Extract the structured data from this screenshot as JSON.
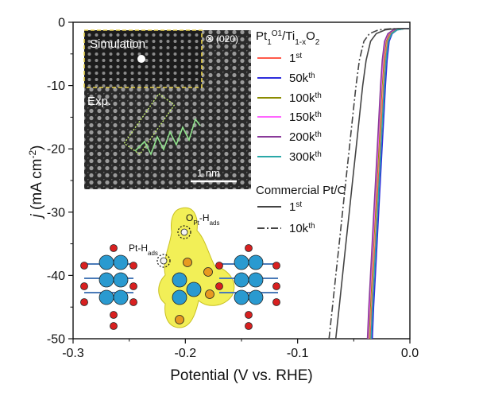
{
  "chart_data": {
    "type": "line",
    "xlabel": "Potential (V vs. RHE)",
    "ylabel_parts": {
      "italic": "j",
      "rest": " (mA cm",
      "sup": "-2",
      "close": ")"
    },
    "xlim": [
      -0.3,
      0.0
    ],
    "ylim": [
      -50,
      0
    ],
    "x_ticks": [
      "-0.3",
      "-0.2",
      "-0.1",
      "0.0"
    ],
    "y_ticks": [
      "0",
      "-10",
      "-20",
      "-30",
      "-40",
      "-50"
    ],
    "groups": [
      {
        "label_parts": [
          "Pt",
          "1",
          "O1",
          "/Ti",
          "1-x",
          "O",
          "2"
        ]
      },
      {
        "label": "Commercial Pt/C"
      }
    ],
    "series": [
      {
        "name_base": "1",
        "name_sup": "st",
        "group": 0,
        "color": "#ff5a4a",
        "style": "solid",
        "x": [
          -0.0352,
          -0.034,
          -0.0325,
          -0.031,
          -0.0295,
          -0.028,
          -0.0265,
          -0.025,
          -0.0235,
          -0.022,
          -0.02,
          -0.017,
          -0.012,
          -0.005,
          0.0
        ],
        "y": [
          -50,
          -45,
          -40,
          -35,
          -30,
          -25,
          -20,
          -15,
          -10,
          -6,
          -3,
          -1.8,
          -1.2,
          -1.0,
          -1.0
        ]
      },
      {
        "name_base": "50k",
        "name_sup": "th",
        "group": 0,
        "color": "#2d2ddc",
        "style": "solid",
        "x": [
          -0.0335,
          -0.0323,
          -0.0308,
          -0.0293,
          -0.0278,
          -0.0263,
          -0.0248,
          -0.0233,
          -0.0218,
          -0.0203,
          -0.0185,
          -0.0158,
          -0.0113,
          -0.0045,
          0.0
        ],
        "y": [
          -50,
          -45,
          -40,
          -35,
          -30,
          -25,
          -20,
          -15,
          -10,
          -6,
          -3,
          -1.8,
          -1.2,
          -1.0,
          -1.0
        ]
      },
      {
        "name_base": "100k",
        "name_sup": "th",
        "group": 0,
        "color": "#8c8c00",
        "style": "solid",
        "x": [
          -0.0365,
          -0.0353,
          -0.0338,
          -0.0323,
          -0.0308,
          -0.0293,
          -0.0278,
          -0.0263,
          -0.0248,
          -0.0233,
          -0.0213,
          -0.0183,
          -0.0133,
          -0.0063,
          0.0
        ],
        "y": [
          -50,
          -45,
          -40,
          -35,
          -30,
          -25,
          -20,
          -15,
          -10,
          -6,
          -3,
          -1.8,
          -1.2,
          -1.0,
          -1.0
        ]
      },
      {
        "name_base": "150k",
        "name_sup": "th",
        "group": 0,
        "color": "#ff66ff",
        "style": "solid",
        "x": [
          -0.0372,
          -0.036,
          -0.0345,
          -0.033,
          -0.0315,
          -0.03,
          -0.0285,
          -0.027,
          -0.0255,
          -0.024,
          -0.022,
          -0.019,
          -0.014,
          -0.007,
          0.0
        ],
        "y": [
          -50,
          -45,
          -40,
          -35,
          -30,
          -25,
          -20,
          -15,
          -10,
          -6,
          -3,
          -1.8,
          -1.2,
          -1.0,
          -1.0
        ]
      },
      {
        "name_base": "200k",
        "name_sup": "th",
        "group": 0,
        "color": "#8a3a9a",
        "style": "solid",
        "x": [
          -0.0378,
          -0.0366,
          -0.0351,
          -0.0336,
          -0.0321,
          -0.0306,
          -0.0291,
          -0.0276,
          -0.0261,
          -0.0246,
          -0.0226,
          -0.0196,
          -0.0146,
          -0.0076,
          0.0
        ],
        "y": [
          -50,
          -45,
          -40,
          -35,
          -30,
          -25,
          -20,
          -15,
          -10,
          -6,
          -3,
          -1.8,
          -1.2,
          -1.0,
          -1.0
        ]
      },
      {
        "name_base": "300k",
        "name_sup": "th",
        "group": 0,
        "color": "#2aa8a8",
        "style": "solid",
        "x": [
          -0.0345,
          -0.0333,
          -0.0318,
          -0.0303,
          -0.0288,
          -0.0273,
          -0.0258,
          -0.0243,
          -0.0228,
          -0.0213,
          -0.0193,
          -0.0163,
          -0.0113,
          -0.0043,
          0.0
        ],
        "y": [
          -50,
          -45,
          -40,
          -35,
          -30,
          -25,
          -20,
          -15,
          -10,
          -6,
          -3,
          -1.8,
          -1.2,
          -1.0,
          -1.0
        ]
      },
      {
        "name_base": "1",
        "name_sup": "st",
        "group": 1,
        "color": "#444444",
        "style": "solid",
        "x": [
          -0.066,
          -0.063,
          -0.06,
          -0.057,
          -0.054,
          -0.051,
          -0.048,
          -0.045,
          -0.042,
          -0.039,
          -0.035,
          -0.03,
          -0.022,
          -0.012,
          0.0
        ],
        "y": [
          -50,
          -45,
          -40,
          -35,
          -30,
          -25,
          -20,
          -15,
          -10,
          -6,
          -3,
          -1.8,
          -1.2,
          -1.0,
          -1.0
        ]
      },
      {
        "name_base": "10k",
        "name_sup": "th",
        "group": 1,
        "color": "#444444",
        "style": "dashdot",
        "x": [
          -0.072,
          -0.069,
          -0.066,
          -0.063,
          -0.06,
          -0.057,
          -0.054,
          -0.051,
          -0.048,
          -0.045,
          -0.041,
          -0.036,
          -0.028,
          -0.016,
          0.0
        ],
        "y": [
          -50,
          -45,
          -40,
          -35,
          -30,
          -25,
          -20,
          -15,
          -10,
          -6,
          -3,
          -1.8,
          -1.2,
          -1.0,
          -1.0
        ]
      }
    ],
    "grid": false,
    "legend_position": "right"
  },
  "inset_image": {
    "simulation_label": "Simulation",
    "orientation_symbol": "⊗",
    "orientation_label": "(020)",
    "exp_label": "Exp.",
    "scale_label": "1 nm"
  },
  "structure": {
    "pt_h_label_parts": [
      "Pt-H",
      "ads"
    ],
    "o_h_label_parts": [
      "O",
      "Pt",
      "-H",
      "ads"
    ]
  }
}
